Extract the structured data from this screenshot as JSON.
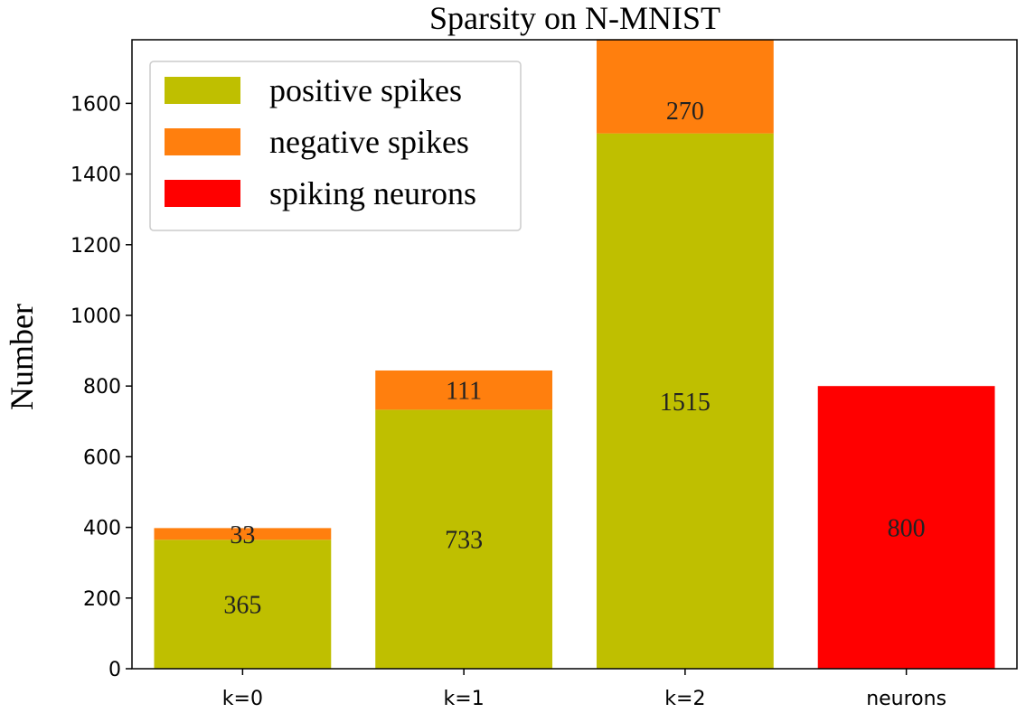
{
  "chart_data": {
    "type": "bar",
    "stacked": true,
    "title": "Sparsity on N-MNIST",
    "xlabel": "",
    "ylabel": "Number",
    "categories": [
      "k=0",
      "k=1",
      "k=2",
      "neurons"
    ],
    "ylim": [
      0,
      1780
    ],
    "yticks": [
      0,
      200,
      400,
      600,
      800,
      1000,
      1200,
      1400,
      1600
    ],
    "grid": false,
    "legend_position": "top-left",
    "series": [
      {
        "name": "positive spikes",
        "color": "#bfbf00",
        "values": [
          365,
          733,
          1515,
          0
        ]
      },
      {
        "name": "negative spikes",
        "color": "#ff7f0e",
        "values": [
          33,
          111,
          270,
          0
        ]
      },
      {
        "name": "spiking neurons",
        "color": "#ff0000",
        "values": [
          0,
          0,
          0,
          800
        ]
      }
    ],
    "value_labels": true
  }
}
